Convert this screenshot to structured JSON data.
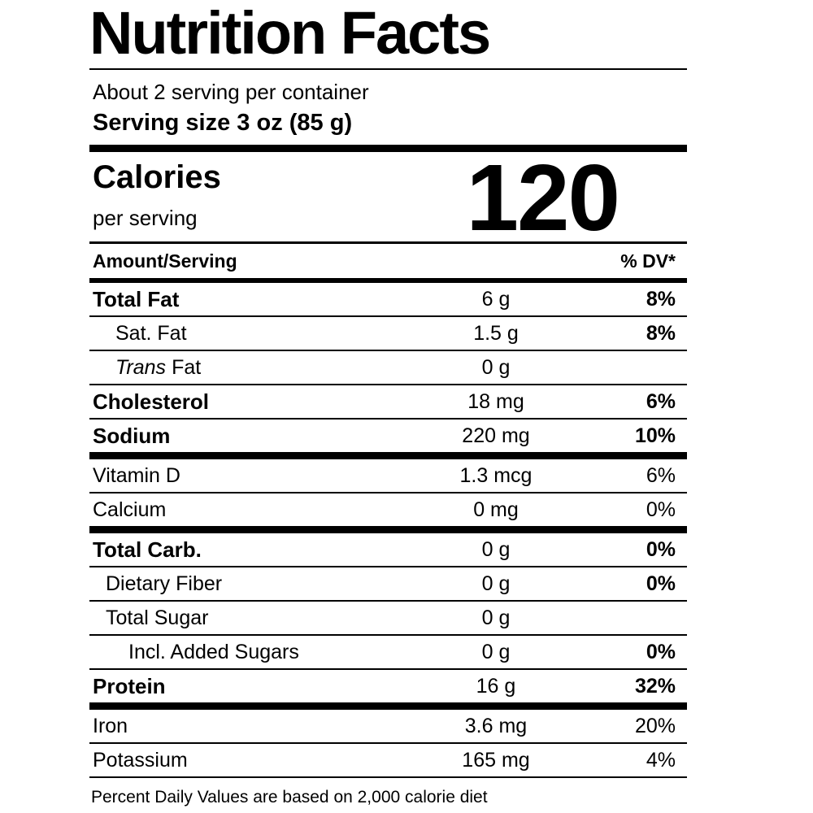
{
  "label": {
    "title": "Nutrition Facts",
    "servings_line": "About 2 serving per container",
    "serving_size_line": "Serving size 3 oz (85 g)",
    "calories": {
      "label": "Calories",
      "subtext": "per serving",
      "value": "120"
    },
    "columns": {
      "amount_header": "Amount/Serving",
      "dv_header": "% DV*"
    },
    "rows": [
      {
        "name": "Total Fat",
        "amount": "6 g",
        "dv": "8%"
      },
      {
        "name": "Sat. Fat",
        "amount": "1.5 g",
        "dv": "8%"
      },
      {
        "name_italic": "Trans",
        "name": "Fat",
        "amount": "0 g",
        "dv": ""
      },
      {
        "name": "Cholesterol",
        "amount": "18 mg",
        "dv": "6%"
      },
      {
        "name": "Sodium",
        "amount": "220 mg",
        "dv": "10%"
      },
      {
        "name": "Vitamin D",
        "amount": "1.3 mcg",
        "dv": "6%"
      },
      {
        "name": "Calcium",
        "amount": "0 mg",
        "dv": "0%"
      },
      {
        "name": "Total Carb.",
        "amount": "0 g",
        "dv": "0%"
      },
      {
        "name": "Dietary Fiber",
        "amount": "0 g",
        "dv": "0%"
      },
      {
        "name": "Total Sugar",
        "amount": "0 g",
        "dv": ""
      },
      {
        "name": "Incl. Added Sugars",
        "amount": "0 g",
        "dv": "0%"
      },
      {
        "name": "Protein",
        "amount": "16 g",
        "dv": "32%"
      },
      {
        "name": "Iron",
        "amount": "3.6 mg",
        "dv": "20%"
      },
      {
        "name": "Potassium",
        "amount": "165 mg",
        "dv": "4%"
      }
    ],
    "footnote": "Percent Daily Values are based on 2,000 calorie diet",
    "colors": {
      "text": "#000000",
      "background": "#ffffff"
    }
  }
}
